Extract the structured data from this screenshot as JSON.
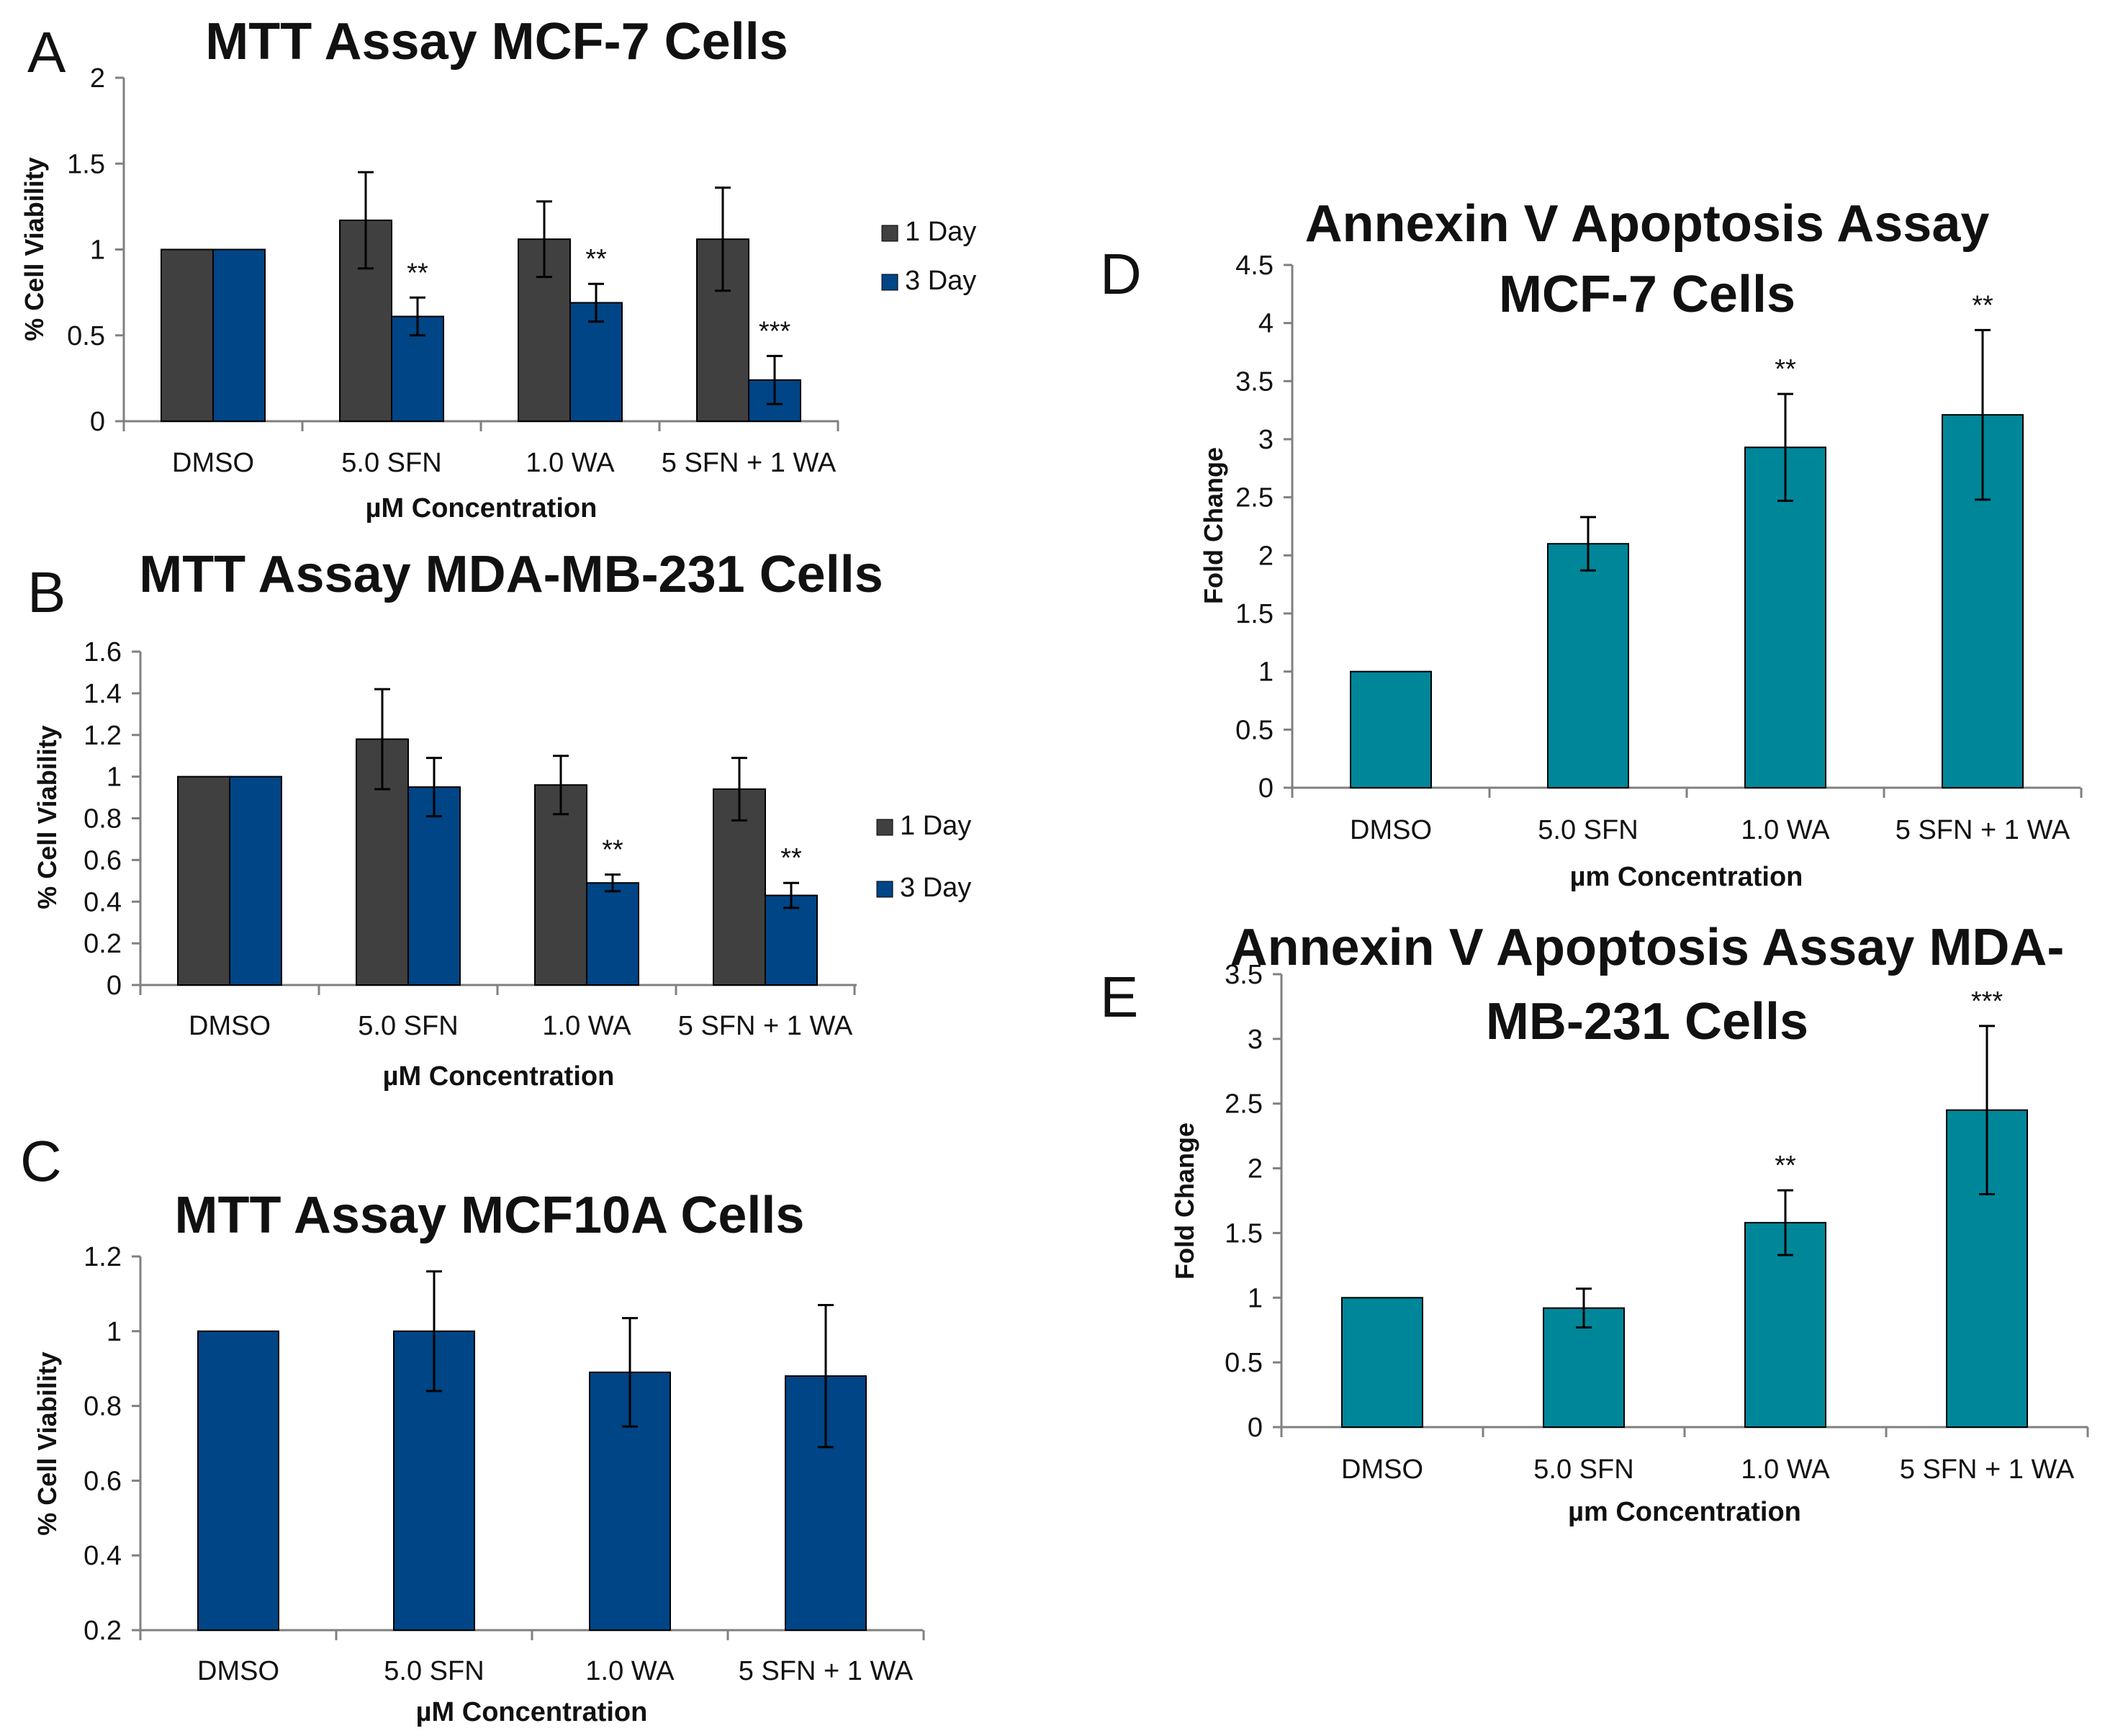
{
  "chart_data": [
    {
      "id": "A",
      "type": "bar",
      "panel_letter": "A",
      "title": [
        "MTT Assay MCF-7 Cells"
      ],
      "xlabel": "µM Concentration",
      "ylabel": "% Cell Viability",
      "ylim": [
        0,
        2
      ],
      "yticks": [
        "0",
        "0.5",
        "1",
        "1.5",
        "2"
      ],
      "categories": [
        "DMSO",
        "5.0 SFN",
        "1.0 WA",
        "5 SFN + 1 WA"
      ],
      "series": [
        {
          "name": "1 Day",
          "color": "#404040",
          "values": [
            1.0,
            1.17,
            1.06,
            1.06
          ],
          "errors": [
            0,
            0.28,
            0.22,
            0.3
          ],
          "significance": [
            "",
            "",
            "",
            ""
          ]
        },
        {
          "name": "3 Day",
          "color": "#004585",
          "values": [
            1.0,
            0.61,
            0.69,
            0.24
          ],
          "errors": [
            0,
            0.11,
            0.11,
            0.14
          ],
          "significance": [
            "",
            "**",
            "**",
            "***"
          ]
        }
      ],
      "legend": {
        "show": true,
        "position": "right"
      }
    },
    {
      "id": "B",
      "type": "bar",
      "panel_letter": "B",
      "title": [
        "MTT Assay MDA-MB-231 Cells"
      ],
      "xlabel": "µM Concentration",
      "ylabel": "% Cell Viability",
      "ylim": [
        0,
        1.6
      ],
      "yticks": [
        "0",
        "0.2",
        "0.4",
        "0.6",
        "0.8",
        "1",
        "1.2",
        "1.4",
        "1.6"
      ],
      "categories": [
        "DMSO",
        "5.0 SFN",
        "1.0 WA",
        "5 SFN + 1 WA"
      ],
      "series": [
        {
          "name": "1 Day",
          "color": "#404040",
          "values": [
            1.0,
            1.18,
            0.96,
            0.94
          ],
          "errors": [
            0,
            0.24,
            0.14,
            0.15
          ],
          "significance": [
            "",
            "",
            "",
            ""
          ]
        },
        {
          "name": "3 Day",
          "color": "#004585",
          "values": [
            1.0,
            0.95,
            0.49,
            0.43
          ],
          "errors": [
            0,
            0.14,
            0.04,
            0.06
          ],
          "significance": [
            "",
            "",
            "**",
            "**"
          ]
        }
      ],
      "legend": {
        "show": true,
        "position": "right"
      }
    },
    {
      "id": "C",
      "type": "bar",
      "panel_letter": "C",
      "title": [
        "MTT Assay MCF10A Cells"
      ],
      "xlabel": "µM Concentration",
      "ylabel": "% Cell Viability",
      "ylim": [
        0.2,
        1.2
      ],
      "yticks": [
        "0.2",
        "0.4",
        "0.6",
        "0.8",
        "1",
        "1.2"
      ],
      "categories": [
        "DMSO",
        "5.0 SFN",
        "1.0 WA",
        "5 SFN + 1 WA"
      ],
      "series": [
        {
          "name": "Viability",
          "color": "#004585",
          "values": [
            1.0,
            1.0,
            0.89,
            0.88
          ],
          "errors": [
            0,
            0.16,
            0.145,
            0.19
          ],
          "significance": [
            "",
            "",
            "",
            ""
          ]
        }
      ],
      "legend": {
        "show": false
      }
    },
    {
      "id": "D",
      "type": "bar",
      "panel_letter": "D",
      "title": [
        "Annexin V Apoptosis Assay",
        "MCF-7 Cells"
      ],
      "xlabel": "µm Concentration",
      "ylabel": "Fold Change",
      "ylim": [
        0,
        4.5
      ],
      "yticks": [
        "0",
        "0.5",
        "1",
        "1.5",
        "2",
        "2.5",
        "3",
        "3.5",
        "4",
        "4.5"
      ],
      "categories": [
        "DMSO",
        "5.0 SFN",
        "1.0 WA",
        "5 SFN + 1 WA"
      ],
      "series": [
        {
          "name": "Fold Change",
          "color": "#008699",
          "values": [
            1.0,
            2.1,
            2.93,
            3.21
          ],
          "errors": [
            0,
            0.23,
            0.46,
            0.73
          ],
          "significance": [
            "",
            "",
            "**",
            "**"
          ]
        }
      ],
      "legend": {
        "show": false
      }
    },
    {
      "id": "E",
      "type": "bar",
      "panel_letter": "E",
      "title": [
        "Annexin V Apoptosis Assay MDA-",
        "MB-231 Cells"
      ],
      "xlabel": "µm Concentration",
      "ylabel": "Fold Change",
      "ylim": [
        0,
        3.5
      ],
      "yticks": [
        "0",
        "0.5",
        "1",
        "1.5",
        "2",
        "2.5",
        "3",
        "3.5"
      ],
      "categories": [
        "DMSO",
        "5.0 SFN",
        "1.0 WA",
        "5 SFN + 1 WA"
      ],
      "series": [
        {
          "name": "Fold Change",
          "color": "#008699",
          "values": [
            1.0,
            0.92,
            1.58,
            2.45
          ],
          "errors": [
            0,
            0.15,
            0.25,
            0.65
          ],
          "significance": [
            "",
            "",
            "**",
            "***"
          ]
        }
      ],
      "legend": {
        "show": false
      }
    }
  ]
}
